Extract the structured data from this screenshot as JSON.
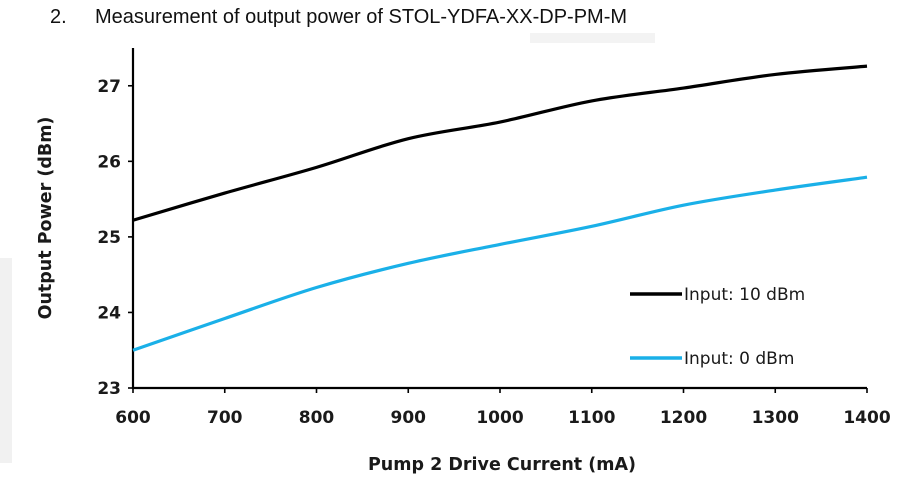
{
  "heading": {
    "number": "2.",
    "text": "Measurement of output power of STOL-YDFA-XX-DP-PM-M"
  },
  "chart_data": {
    "type": "line",
    "title": "",
    "xlabel": "Pump 2 Drive Current (mA)",
    "ylabel": "Output Power (dBm)",
    "xlim": [
      600,
      1400
    ],
    "ylim": [
      23,
      27.5
    ],
    "x_ticks": [
      "600",
      "700",
      "800",
      "900",
      "1000",
      "1100",
      "1200",
      "1300",
      "1400"
    ],
    "y_ticks": [
      "23",
      "24",
      "25",
      "26",
      "27"
    ],
    "grid": false,
    "legend_position": "bottom-right",
    "series": [
      {
        "name": "Input: 10 dBm",
        "color": "#000000",
        "x": [
          600,
          700,
          800,
          900,
          1000,
          1100,
          1200,
          1300,
          1400
        ],
        "values": [
          25.22,
          25.58,
          25.92,
          26.3,
          26.52,
          26.8,
          26.97,
          27.15,
          27.26
        ]
      },
      {
        "name": "Input: 0 dBm",
        "color": "#1ab0e8",
        "x": [
          600,
          700,
          800,
          900,
          1000,
          1100,
          1200,
          1300,
          1400
        ],
        "values": [
          23.5,
          23.92,
          24.33,
          24.65,
          24.9,
          25.14,
          25.42,
          25.62,
          25.79
        ]
      }
    ]
  }
}
